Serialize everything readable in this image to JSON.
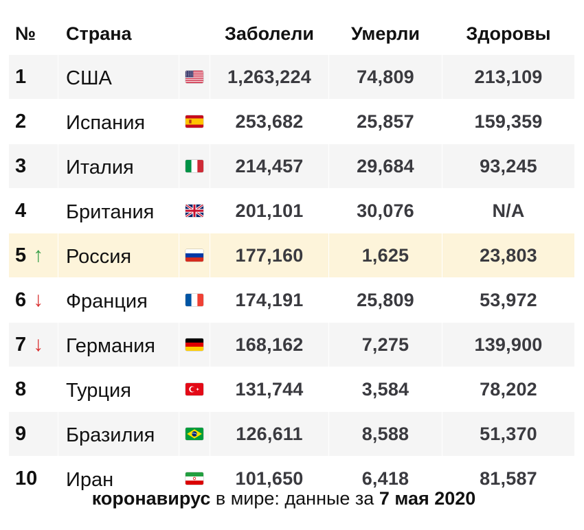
{
  "table": {
    "headers": {
      "rank": "№",
      "country": "Страна",
      "cases": "Заболели",
      "deaths": "Умерли",
      "recovered": "Здоровы"
    },
    "rows": [
      {
        "rank": "1",
        "arrow": "",
        "country": "США",
        "flag_icon": "flag-usa-icon",
        "cases": "1,263,224",
        "deaths": "74,809",
        "recovered": "213,109"
      },
      {
        "rank": "2",
        "arrow": "",
        "country": "Испания",
        "flag_icon": "flag-spain-icon",
        "cases": "253,682",
        "deaths": "25,857",
        "recovered": "159,359"
      },
      {
        "rank": "3",
        "arrow": "",
        "country": "Италия",
        "flag_icon": "flag-italy-icon",
        "cases": "214,457",
        "deaths": "29,684",
        "recovered": "93,245"
      },
      {
        "rank": "4",
        "arrow": "",
        "country": "Британия",
        "flag_icon": "flag-uk-icon",
        "cases": "201,101",
        "deaths": "30,076",
        "recovered": "N/A"
      },
      {
        "rank": "5",
        "arrow": "↑",
        "arrow_dir": "up",
        "country": "Россия",
        "flag_icon": "flag-russia-icon",
        "cases": "177,160",
        "deaths": "1,625",
        "recovered": "23,803",
        "highlight": true
      },
      {
        "rank": "6",
        "arrow": "↓",
        "arrow_dir": "down",
        "country": "Франция",
        "flag_icon": "flag-france-icon",
        "cases": "174,191",
        "deaths": "25,809",
        "recovered": "53,972"
      },
      {
        "rank": "7",
        "arrow": "↓",
        "arrow_dir": "down",
        "country": "Германия",
        "flag_icon": "flag-germany-icon",
        "cases": "168,162",
        "deaths": "7,275",
        "recovered": "139,900"
      },
      {
        "rank": "8",
        "arrow": "",
        "country": "Турция",
        "flag_icon": "flag-turkey-icon",
        "cases": "131,744",
        "deaths": "3,584",
        "recovered": "78,202"
      },
      {
        "rank": "9",
        "arrow": "",
        "country": "Бразилия",
        "flag_icon": "flag-brazil-icon",
        "cases": "126,611",
        "deaths": "8,588",
        "recovered": "51,370"
      },
      {
        "rank": "10",
        "arrow": "",
        "country": "Иран",
        "flag_icon": "flag-iran-icon",
        "cases": "101,650",
        "deaths": "6,418",
        "recovered": "81,587"
      }
    ]
  },
  "caption": {
    "part1_bold": "коронавирус",
    "part2": " в мире: данные за ",
    "part3_bold": "7 мая 2020"
  },
  "colors": {
    "highlight_row": "#fdf4da",
    "stripe_row": "#f5f5f5",
    "arrow_up": "#3aa04a",
    "arrow_down": "#d93030"
  },
  "chart_data": {
    "type": "table",
    "title": "",
    "columns": [
      "№",
      "Страна",
      "Заболели",
      "Умерли",
      "Здоровы"
    ],
    "rows": [
      [
        "1",
        "США",
        "1,263,224",
        "74,809",
        "213,109"
      ],
      [
        "2",
        "Испания",
        "253,682",
        "25,857",
        "159,359"
      ],
      [
        "3",
        "Италия",
        "214,457",
        "29,684",
        "93,245"
      ],
      [
        "4",
        "Британия",
        "201,101",
        "30,076",
        "N/A"
      ],
      [
        "5",
        "Россия",
        "177,160",
        "1,625",
        "23,803"
      ],
      [
        "6",
        "Франция",
        "174,191",
        "25,809",
        "53,972"
      ],
      [
        "7",
        "Германия",
        "168,162",
        "7,275",
        "139,900"
      ],
      [
        "8",
        "Турция",
        "131,744",
        "3,584",
        "78,202"
      ],
      [
        "9",
        "Бразилия",
        "126,611",
        "8,588",
        "51,370"
      ],
      [
        "10",
        "Иран",
        "101,650",
        "6,418",
        "81,587"
      ]
    ]
  }
}
